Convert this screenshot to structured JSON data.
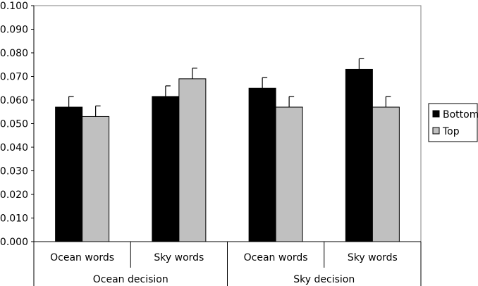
{
  "chart_data": {
    "type": "bar",
    "title": "",
    "xlabel": "",
    "ylabel": "",
    "ylim": [
      0,
      0.1
    ],
    "yticks": [
      "0.000",
      "0.010",
      "0.020",
      "0.030",
      "0.040",
      "0.050",
      "0.060",
      "0.070",
      "0.080",
      "0.090",
      "0.100"
    ],
    "groups": [
      "Ocean decision",
      "Sky decision"
    ],
    "categories": [
      "Ocean words",
      "Sky words",
      "Ocean words",
      "Sky words"
    ],
    "series": [
      {
        "name": "Bottom",
        "color": "#000000",
        "values": [
          0.057,
          0.0615,
          0.065,
          0.073
        ],
        "errors": [
          0.0045,
          0.0045,
          0.0045,
          0.0045
        ]
      },
      {
        "name": "Top",
        "color": "#c0c0c0",
        "values": [
          0.053,
          0.069,
          0.057,
          0.057
        ],
        "errors": [
          0.0045,
          0.0045,
          0.0045,
          0.0045
        ]
      }
    ],
    "legend_position": "right",
    "grid": false,
    "error_bars": true
  }
}
